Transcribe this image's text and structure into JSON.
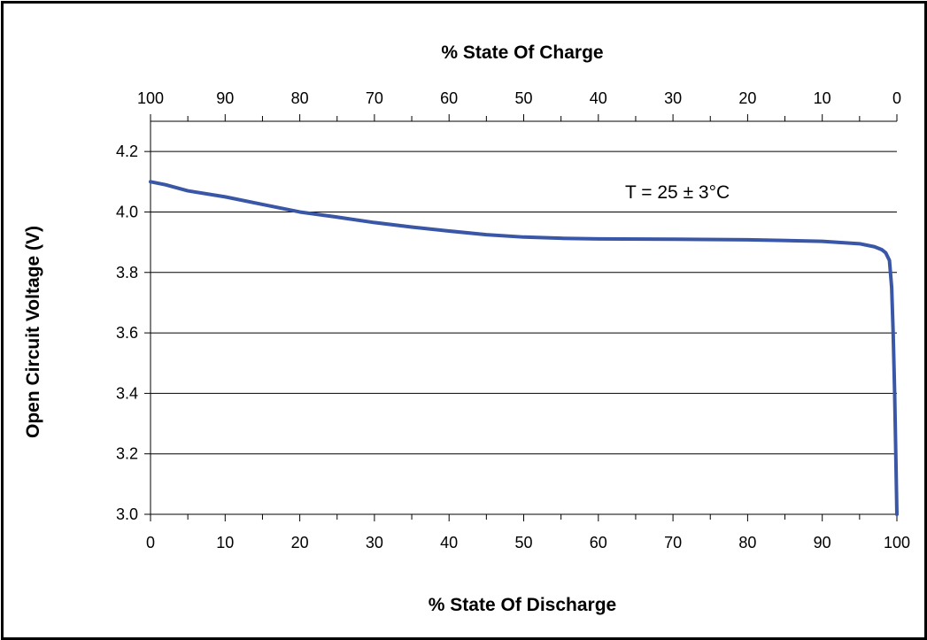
{
  "chart_data": {
    "type": "line",
    "title": "",
    "top_axis_label": "% State Of Charge",
    "xlabel": "% State Of Discharge",
    "ylabel": "Open Circuit Voltage (V)",
    "annotation": "T = 25 ± 3°C",
    "xlim": [
      0,
      100
    ],
    "ylim": [
      3.0,
      4.3
    ],
    "x_ticks": [
      "0",
      "10",
      "20",
      "30",
      "40",
      "50",
      "60",
      "70",
      "80",
      "90",
      "100"
    ],
    "top_ticks": [
      "100",
      "90",
      "80",
      "70",
      "60",
      "50",
      "40",
      "30",
      "20",
      "10",
      "0"
    ],
    "y_ticks": [
      "3.0",
      "3.2",
      "3.4",
      "3.6",
      "3.8",
      "4.0",
      "4.2"
    ],
    "grid": "horizontal",
    "series": [
      {
        "color": "#3a57a7",
        "x": [
          0,
          2,
          5,
          10,
          15,
          20,
          25,
          30,
          35,
          40,
          45,
          50,
          55,
          60,
          70,
          80,
          90,
          95,
          97,
          98,
          98.5,
          99,
          99.3,
          99.5,
          99.7,
          99.85,
          100
        ],
        "y": [
          4.1,
          4.09,
          4.07,
          4.05,
          4.025,
          4.0,
          3.983,
          3.965,
          3.95,
          3.937,
          3.925,
          3.917,
          3.913,
          3.911,
          3.91,
          3.908,
          3.903,
          3.895,
          3.885,
          3.875,
          3.865,
          3.84,
          3.75,
          3.6,
          3.4,
          3.2,
          3.0
        ]
      }
    ]
  }
}
